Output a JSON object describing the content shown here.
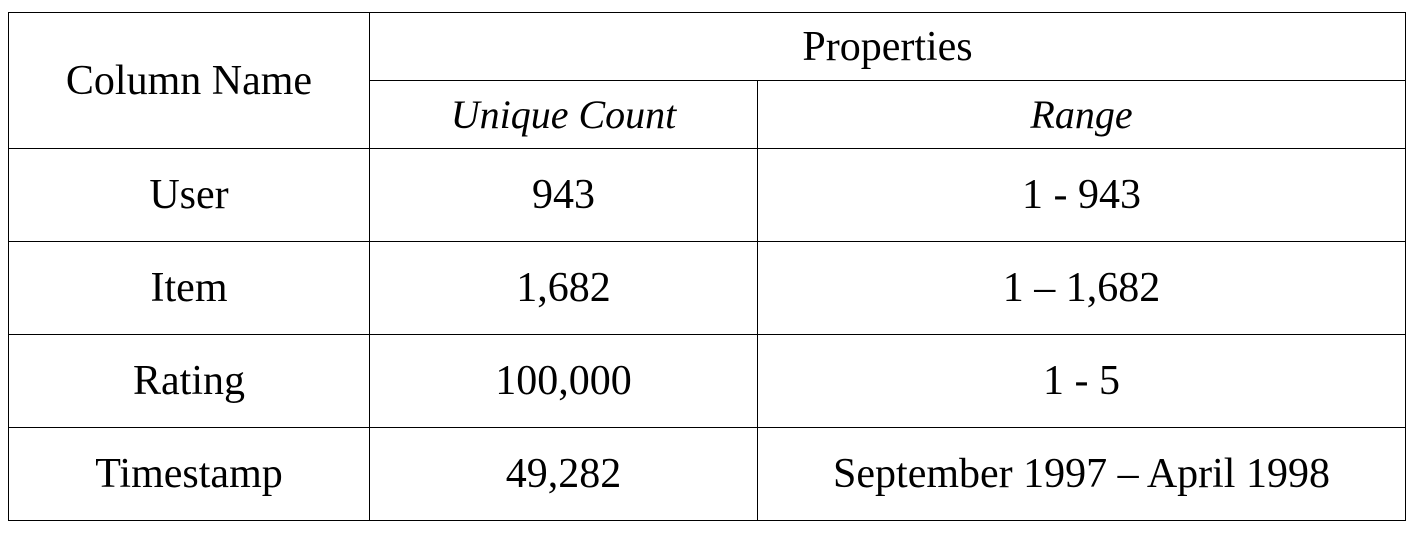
{
  "table": {
    "header": {
      "column_name": "Column Name",
      "group": "Properties",
      "sub_headers": [
        "Unique Count",
        "Range"
      ]
    },
    "rows": [
      {
        "name": "User",
        "unique_count": "943",
        "range": "1 - 943"
      },
      {
        "name": "Item",
        "unique_count": "1,682",
        "range": "1 – 1,682"
      },
      {
        "name": "Rating",
        "unique_count": "100,000",
        "range": "1 - 5"
      },
      {
        "name": "Timestamp",
        "unique_count": "49,282",
        "range": "September 1997 – April 1998"
      }
    ]
  }
}
